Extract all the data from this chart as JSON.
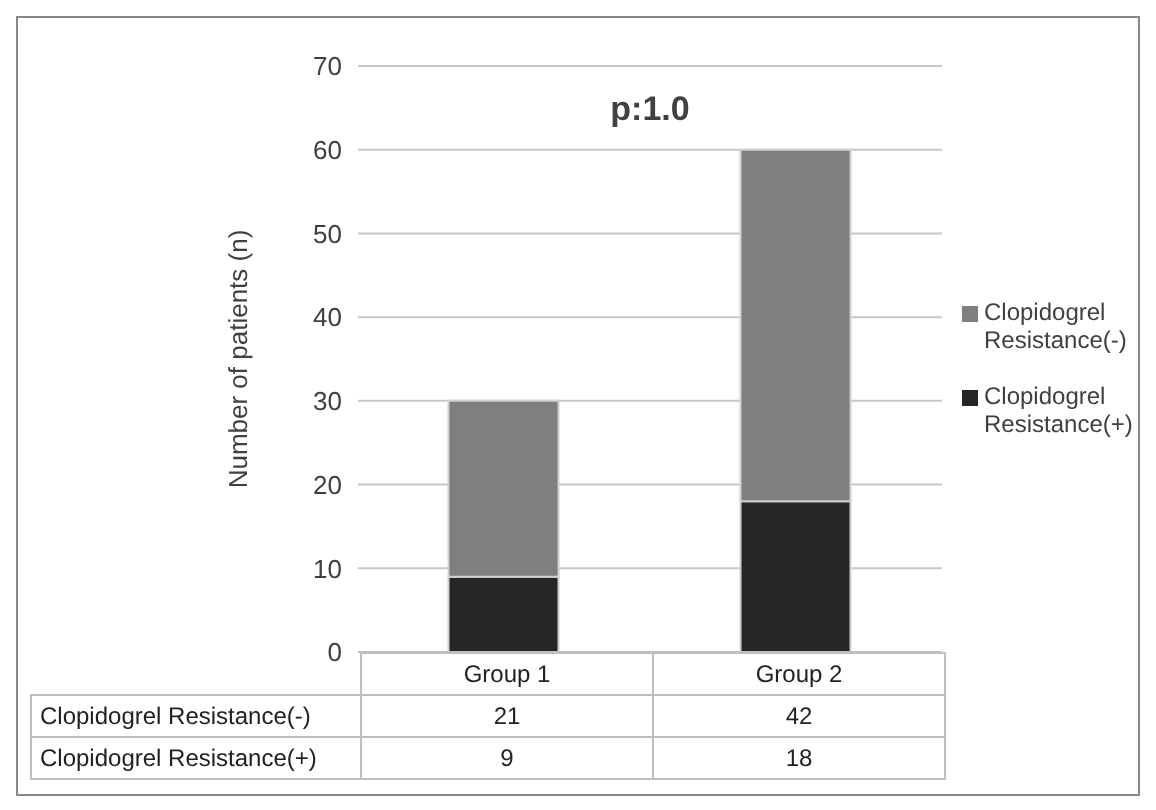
{
  "chart_data": {
    "type": "bar",
    "title": "p:1.0",
    "ylabel": "Number of patients (n)",
    "categories": [
      "Group 1",
      "Group 2"
    ],
    "series": [
      {
        "name": "Clopidogrel Resistance(+)",
        "color": "#262626",
        "values": [
          9,
          18
        ]
      },
      {
        "name": "Clopidogrel Resistance(-)",
        "color": "#7f7f7f",
        "values": [
          21,
          42
        ]
      }
    ],
    "stacked": true,
    "ylim": [
      0,
      70
    ],
    "yticks": [
      0,
      10,
      20,
      30,
      40,
      50,
      60,
      70
    ],
    "grid": "y",
    "legend": "right",
    "data_labels": true
  }
}
